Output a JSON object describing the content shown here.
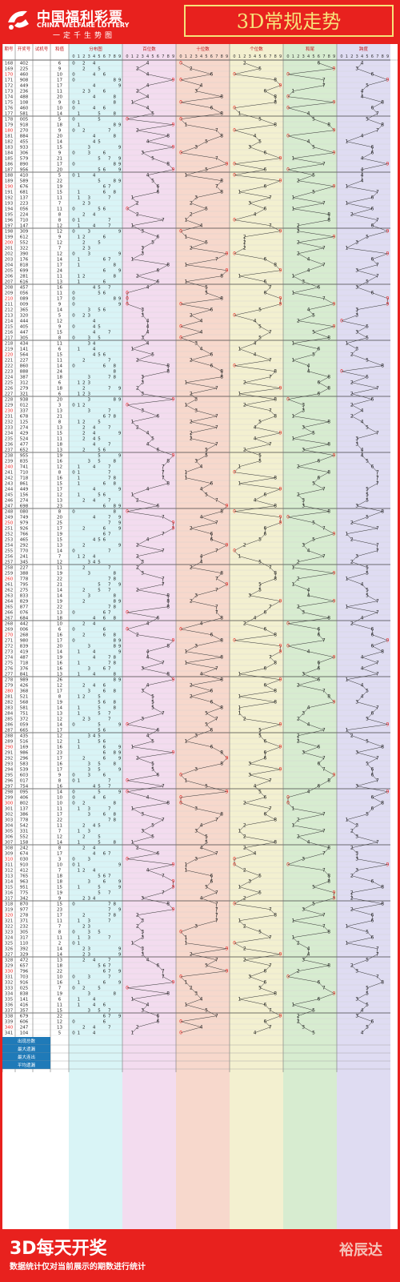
{
  "header": {
    "logo_cn": "中国福利彩票",
    "logo_en": "CHINA WELFARE LOTTERY",
    "slogan": "一定千生势图",
    "title": "3D常规走势"
  },
  "footer": {
    "headline": "3D每天开奖",
    "note": "数据统计仅对当前展示的期数进行统计",
    "brand": "裕辰达"
  },
  "columns": {
    "issue": "期号",
    "draw": "开奖号",
    "test": "试机号",
    "sum": "和值",
    "dist": "分布图",
    "hundreds": "百位数",
    "tens": "十位数",
    "units": "个位数",
    "tail": "和尾",
    "span": "跨度"
  },
  "colors": {
    "dist_bg": "#d9f4f6",
    "hundreds_bg": "#f3dcef",
    "tens_bg": "#f7d8cc",
    "units_bg": "#f3f0d0",
    "tail_bg": "#d7ecd0",
    "span_bg": "#dfdcf2",
    "highlight": "#e8211e"
  },
  "stats_labels": [
    "出现总数",
    "最大遗漏",
    "最大连出",
    "平均遗漏"
  ],
  "chart_data": {
    "type": "table",
    "title": "3D常规走势",
    "issue_start": 168,
    "draws": [
      "402",
      "225",
      "460",
      "908",
      "449",
      "236",
      "488",
      "108",
      "460",
      "581",
      "005",
      "918",
      "270",
      "884",
      "455",
      "933",
      "306",
      "579",
      "890",
      "956",
      "410",
      "589",
      "676",
      "681",
      "137",
      "223",
      "056",
      "224",
      "710",
      "147",
      "309",
      "612",
      "552",
      "322",
      "390",
      "176",
      "818",
      "699",
      "281",
      "616",
      "457",
      "056",
      "089",
      "009",
      "365",
      "320",
      "444",
      "405",
      "447",
      "305",
      "434",
      "141",
      "564",
      "227",
      "860",
      "888",
      "387",
      "312",
      "279",
      "321",
      "938",
      "012",
      "337",
      "678",
      "125",
      "274",
      "429",
      "524",
      "477",
      "652",
      "955",
      "835",
      "741",
      "710",
      "718",
      "861",
      "449",
      "156",
      "274",
      "698",
      "080",
      "749",
      "979",
      "926",
      "766",
      "465",
      "292",
      "770",
      "241",
      "345",
      "227",
      "388",
      "778",
      "795",
      "275",
      "833",
      "829",
      "877",
      "076",
      "684",
      "442",
      "006",
      "268",
      "980",
      "839",
      "419",
      "487",
      "718",
      "376",
      "841",
      "989",
      "426",
      "368",
      "521",
      "568",
      "581",
      "751",
      "372",
      "059",
      "665",
      "435",
      "516",
      "169",
      "986",
      "296",
      "583",
      "539",
      "603",
      "017",
      "754",
      "095",
      "406",
      "802",
      "137",
      "386",
      "778",
      "542",
      "331",
      "552",
      "158",
      "242",
      "674",
      "030",
      "910",
      "412",
      "765",
      "963",
      "951",
      "775",
      "342",
      "870",
      "977",
      "278",
      "371",
      "232",
      "305",
      "317",
      "110",
      "392",
      "329",
      "472",
      "657",
      "796",
      "703",
      "916",
      "025",
      "838",
      "141",
      "416",
      "357",
      "679",
      "606",
      "247",
      "104"
    ]
  }
}
